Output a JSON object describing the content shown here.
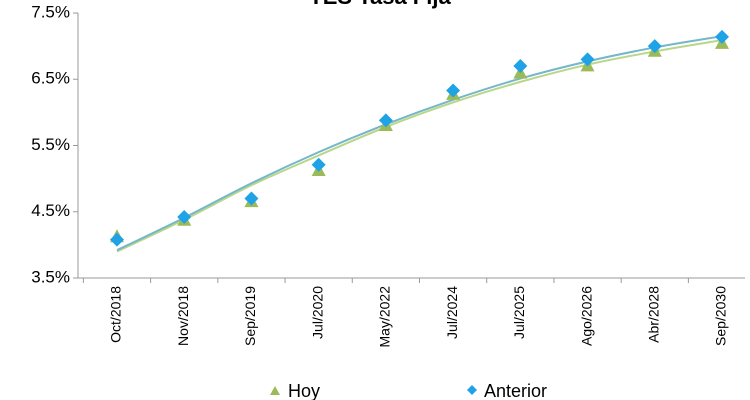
{
  "chart_data": {
    "type": "scatter",
    "title": "TES Tasa Fija",
    "categories": [
      "Oct/2018",
      "Nov/2018",
      "Sep/2019",
      "Jul/2020",
      "May/2022",
      "Jul/2024",
      "Jul/2025",
      "Ago/2026",
      "Abr/2028",
      "Sep/2030"
    ],
    "yticks": [
      "3.5%",
      "4.5%",
      "5.5%",
      "6.5%",
      "7.5%"
    ],
    "ylim": [
      3.5,
      7.5
    ],
    "series": [
      {
        "name": "Hoy",
        "marker": "triangle",
        "color": "#9bbb59",
        "values": [
          4.13,
          4.38,
          4.66,
          5.13,
          5.81,
          6.28,
          6.6,
          6.71,
          6.93,
          7.05
        ],
        "trendline": [
          3.9,
          4.38,
          4.9,
          5.35,
          5.78,
          6.15,
          6.46,
          6.72,
          6.92,
          7.09
        ]
      },
      {
        "name": "Anterior",
        "marker": "diamond",
        "color": "#1fa3e6",
        "values": [
          4.08,
          4.42,
          4.7,
          5.21,
          5.88,
          6.33,
          6.7,
          6.8,
          7.0,
          7.14
        ],
        "trendline": [
          3.92,
          4.41,
          4.93,
          5.4,
          5.82,
          6.19,
          6.51,
          6.77,
          6.98,
          7.15
        ]
      }
    ]
  }
}
